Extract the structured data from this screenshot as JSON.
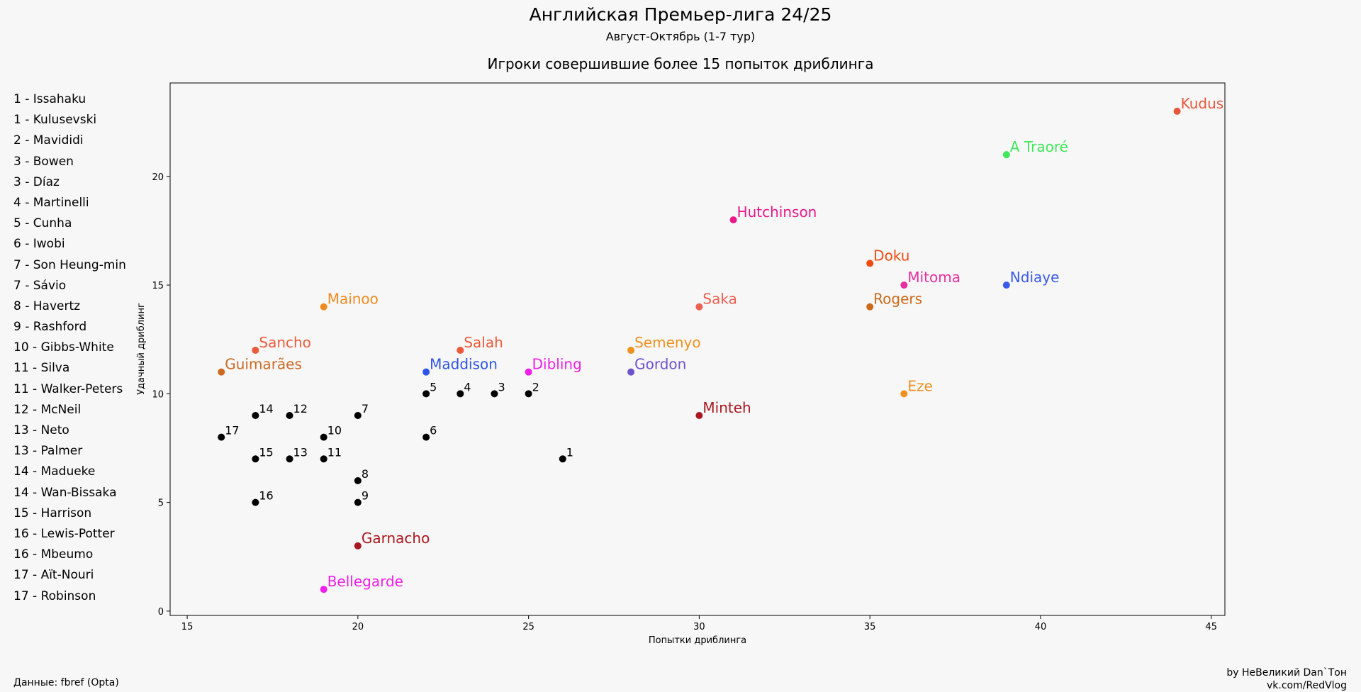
{
  "chart_data": {
    "type": "scatter",
    "title": "Английская Премьер-лига 24/25",
    "subtitle": "Август-Октябрь (1-7 тур)",
    "plot_title": "Игроки совершившие более 15 попыток дриблинга",
    "xlabel": "Попытки дриблинга",
    "ylabel": "Удачный дриблинг",
    "xlim": [
      14.5,
      45.4
    ],
    "ylim": [
      -0.2,
      24.3
    ],
    "xticks": [
      15,
      20,
      25,
      30,
      35,
      40,
      45
    ],
    "yticks": [
      0,
      5,
      10,
      15,
      20
    ],
    "grid": false,
    "labeled_points": [
      {
        "label": "Kudus",
        "x": 44,
        "y": 23,
        "color": "#e8563a"
      },
      {
        "label": "A Traoré",
        "x": 39,
        "y": 21,
        "color": "#3fe85a"
      },
      {
        "label": "Hutchinson",
        "x": 31,
        "y": 18,
        "color": "#e6198a"
      },
      {
        "label": "Doku",
        "x": 35,
        "y": 16,
        "color": "#f04c10"
      },
      {
        "label": "Mitoma",
        "x": 36,
        "y": 15,
        "color": "#e62e9e"
      },
      {
        "label": "Ndiaye",
        "x": 39,
        "y": 15,
        "color": "#3a5ae8"
      },
      {
        "label": "Mainoo",
        "x": 19,
        "y": 14,
        "color": "#f08a1e"
      },
      {
        "label": "Saka",
        "x": 30,
        "y": 14,
        "color": "#ec6050"
      },
      {
        "label": "Rogers",
        "x": 35,
        "y": 14,
        "color": "#cc6818"
      },
      {
        "label": "Sancho",
        "x": 17,
        "y": 12,
        "color": "#ec5a3a"
      },
      {
        "label": "Salah",
        "x": 23,
        "y": 12,
        "color": "#ec5a3a"
      },
      {
        "label": "Semenyo",
        "x": 28,
        "y": 12,
        "color": "#f0901e"
      },
      {
        "label": "Guimarães",
        "x": 16,
        "y": 11,
        "color": "#cc6a24"
      },
      {
        "label": "Maddison",
        "x": 22,
        "y": 11,
        "color": "#2e54e6"
      },
      {
        "label": "Dibling",
        "x": 25,
        "y": 11,
        "color": "#f01ee8"
      },
      {
        "label": "Gordon",
        "x": 28,
        "y": 11,
        "color": "#6e52cc"
      },
      {
        "label": "Eze",
        "x": 36,
        "y": 10,
        "color": "#f0901e"
      },
      {
        "label": "Minteh",
        "x": 30,
        "y": 9,
        "color": "#a8181e"
      },
      {
        "label": "Garnacho",
        "x": 20,
        "y": 3,
        "color": "#a8181e"
      },
      {
        "label": "Bellegarde",
        "x": 19,
        "y": 1,
        "color": "#f01ee8"
      }
    ],
    "numbered_points": [
      {
        "label": "1",
        "x": 26,
        "y": 7
      },
      {
        "label": "2",
        "x": 25,
        "y": 10
      },
      {
        "label": "3",
        "x": 24,
        "y": 10
      },
      {
        "label": "4",
        "x": 23,
        "y": 10
      },
      {
        "label": "5",
        "x": 22,
        "y": 10
      },
      {
        "label": "6",
        "x": 22,
        "y": 8
      },
      {
        "label": "7",
        "x": 20,
        "y": 9
      },
      {
        "label": "8",
        "x": 20,
        "y": 6
      },
      {
        "label": "9",
        "x": 20,
        "y": 5
      },
      {
        "label": "10",
        "x": 19,
        "y": 8
      },
      {
        "label": "11",
        "x": 19,
        "y": 7
      },
      {
        "label": "12",
        "x": 18,
        "y": 9
      },
      {
        "label": "13",
        "x": 18,
        "y": 7
      },
      {
        "label": "14",
        "x": 17,
        "y": 9
      },
      {
        "label": "15",
        "x": 17,
        "y": 7
      },
      {
        "label": "16",
        "x": 17,
        "y": 5
      },
      {
        "label": "17",
        "x": 16,
        "y": 8
      }
    ],
    "numbered_color": "#000000",
    "legend": [
      "1 - Issahaku",
      "1 - Kulusevski",
      "2 - Mavididi",
      "3 - Bowen",
      "3 - Díaz",
      "4 - Martinelli",
      "5 - Cunha",
      "6 - Iwobi",
      "7 - Son Heung-min",
      "7 - Sávio",
      "8 - Havertz",
      "9 - Rashford",
      "10 - Gibbs-White",
      "11 - Silva",
      "11 - Walker-Peters",
      "12 - McNeil",
      "13 - Neto",
      "13 - Palmer",
      "14 - Madueke",
      "14 - Wan-Bissaka",
      "15 - Harrison",
      "16 - Lewis-Potter",
      "16 - Mbeumo",
      "17 - Aït-Nouri",
      "17 - Robinson"
    ],
    "legend_position": "left"
  },
  "footer": {
    "source": "Данные: fbref (Opta)",
    "credit_line1": "by НеВеликий Dan`Тон",
    "credit_line2": "vk.com/RedVlog"
  }
}
